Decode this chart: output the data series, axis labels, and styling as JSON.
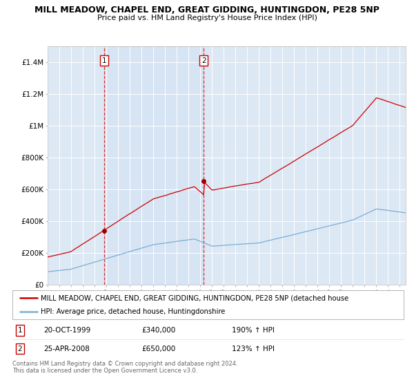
{
  "title_line1": "MILL MEADOW, CHAPEL END, GREAT GIDDING, HUNTINGDON, PE28 5NP",
  "title_line2": "Price paid vs. HM Land Registry's House Price Index (HPI)",
  "background_color": "#ffffff",
  "plot_bg_color": "#dde8f5",
  "grid_color": "#ffffff",
  "red_line_color": "#cc0000",
  "blue_line_color": "#7aadd4",
  "marker_color": "#990000",
  "ylim": [
    0,
    1500000
  ],
  "yticks": [
    0,
    200000,
    400000,
    600000,
    800000,
    1000000,
    1200000,
    1400000
  ],
  "ytick_labels": [
    "£0",
    "£200K",
    "£400K",
    "£600K",
    "£800K",
    "£1M",
    "£1.2M",
    "£1.4M"
  ],
  "xlim_start": 1995.0,
  "xlim_end": 2025.5,
  "sale1_x": 1999.8,
  "sale1_y": 340000,
  "sale1_label": "1",
  "sale1_date": "20-OCT-1999",
  "sale1_price": "£340,000",
  "sale1_hpi": "190% ↑ HPI",
  "sale2_x": 2008.3,
  "sale2_y": 650000,
  "sale2_label": "2",
  "sale2_date": "25-APR-2008",
  "sale2_price": "£650,000",
  "sale2_hpi": "123% ↑ HPI",
  "legend_red_label": "MILL MEADOW, CHAPEL END, GREAT GIDDING, HUNTINGDON, PE28 5NP (detached house",
  "legend_blue_label": "HPI: Average price, detached house, Huntingdonshire",
  "footer_line1": "Contains HM Land Registry data © Crown copyright and database right 2024.",
  "footer_line2": "This data is licensed under the Open Government Licence v3.0."
}
